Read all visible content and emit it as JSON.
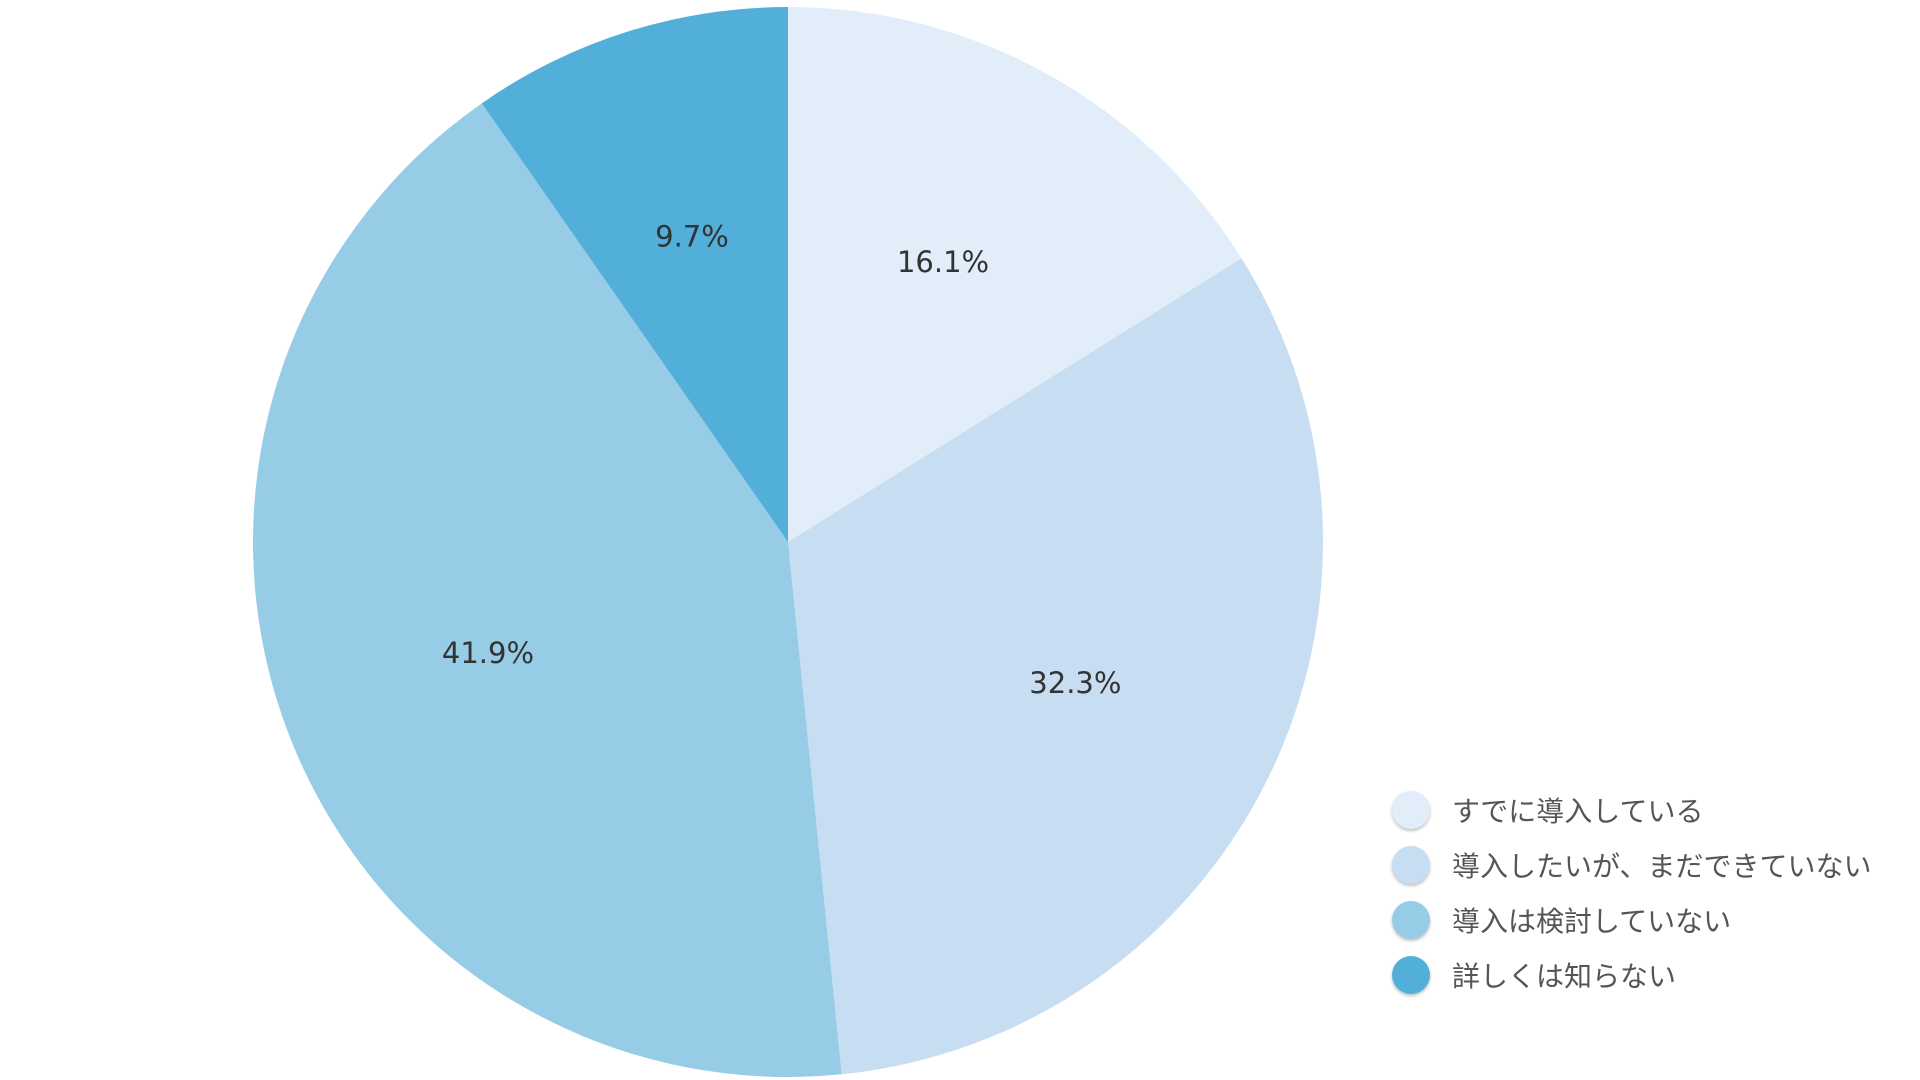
{
  "chart_data": {
    "type": "pie",
    "title": "",
    "start_angle": "top",
    "direction": "clockwise",
    "legend_position": "bottom-right",
    "slices": [
      {
        "label": "すでに導入している",
        "value": 16.1,
        "display": "16.1%",
        "color": "#e1eef9"
      },
      {
        "label": "導入したいが、まだできていない",
        "value": 32.3,
        "display": "32.3%",
        "color": "#c7def2"
      },
      {
        "label": "導入は検討していない",
        "value": 41.9,
        "display": "41.9%",
        "color": "#97cce7"
      },
      {
        "label": "詳しくは知らない",
        "value": 9.7,
        "display": "9.7%",
        "color": "#52afd9"
      }
    ]
  }
}
